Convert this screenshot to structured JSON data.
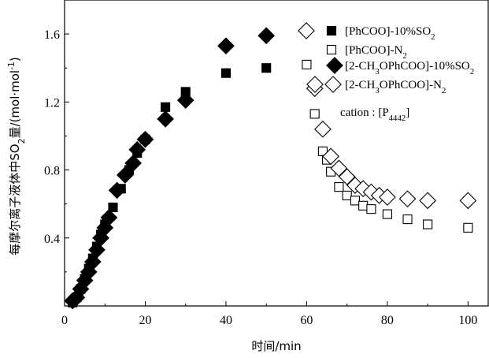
{
  "chart_data": {
    "type": "scatter",
    "title": "",
    "xlabel": "时间/min",
    "ylabel_parts": [
      "每摩尔离子液体中SO",
      "2",
      "量/(mol·mol",
      "-1",
      ")"
    ],
    "xlim": [
      0,
      105
    ],
    "ylim": [
      0,
      1.8
    ],
    "x_ticks": [
      0,
      20,
      40,
      60,
      80,
      100
    ],
    "x_tick_labels": [
      "0",
      "20",
      "40",
      "60",
      "80",
      "100"
    ],
    "y_ticks": [
      0.4,
      0.8,
      1.2,
      1.6
    ],
    "y_tick_labels": [
      "0.4",
      "0.8",
      "1.2",
      "1.6"
    ],
    "grid": false,
    "legend_position": "top-right",
    "series": [
      {
        "name": "[PhCOO]-10%SO2",
        "name_parts": [
          "[PhCOO]-10%SO",
          "2"
        ],
        "marker": "filled-square",
        "x": [
          2,
          3,
          4,
          5,
          6,
          7,
          8,
          9,
          10,
          12,
          14,
          16,
          18,
          20,
          25,
          30,
          40,
          50
        ],
        "y": [
          0.02,
          0.05,
          0.1,
          0.16,
          0.22,
          0.28,
          0.35,
          0.42,
          0.48,
          0.58,
          0.69,
          0.8,
          0.9,
          0.98,
          1.17,
          1.26,
          1.37,
          1.4
        ]
      },
      {
        "name": "[PhCOO]-N2",
        "name_parts": [
          "[PhCOO]-N",
          "2"
        ],
        "marker": "open-square",
        "x": [
          60,
          62,
          64,
          65,
          66,
          68,
          70,
          72,
          74,
          76,
          80,
          85,
          90,
          100
        ],
        "y": [
          1.42,
          1.13,
          0.91,
          0.86,
          0.79,
          0.7,
          0.65,
          0.62,
          0.59,
          0.57,
          0.54,
          0.51,
          0.48,
          0.46
        ]
      },
      {
        "name": "[2-CH3OPhCOO]-10%SO2",
        "name_parts": [
          "[2-CH",
          "3",
          "OPhCOO]-10%SO",
          "2"
        ],
        "marker": "filled-diamond",
        "x": [
          2,
          3,
          4,
          5,
          6,
          7,
          8,
          9,
          10,
          11,
          13,
          15,
          17,
          18,
          20,
          25,
          30,
          40,
          50
        ],
        "y": [
          0.03,
          0.05,
          0.1,
          0.15,
          0.2,
          0.26,
          0.33,
          0.4,
          0.46,
          0.52,
          0.68,
          0.77,
          0.84,
          0.92,
          0.98,
          1.1,
          1.21,
          1.53,
          1.59
        ]
      },
      {
        "name": "[2-CH3OPhCOO]-N2",
        "name_parts": [
          "[2-CH",
          "3",
          "OPhCOO]-N",
          "2"
        ],
        "marker": "open-diamond",
        "x": [
          62,
          64,
          66,
          68,
          70,
          72,
          74,
          76,
          78,
          80,
          85,
          90,
          100
        ],
        "y": [
          1.28,
          1.04,
          0.88,
          0.81,
          0.76,
          0.71,
          0.69,
          0.67,
          0.65,
          0.64,
          0.63,
          0.62,
          0.62
        ]
      }
    ],
    "annotation_parts": [
      "cation : [P",
      "4442",
      "]"
    ]
  }
}
